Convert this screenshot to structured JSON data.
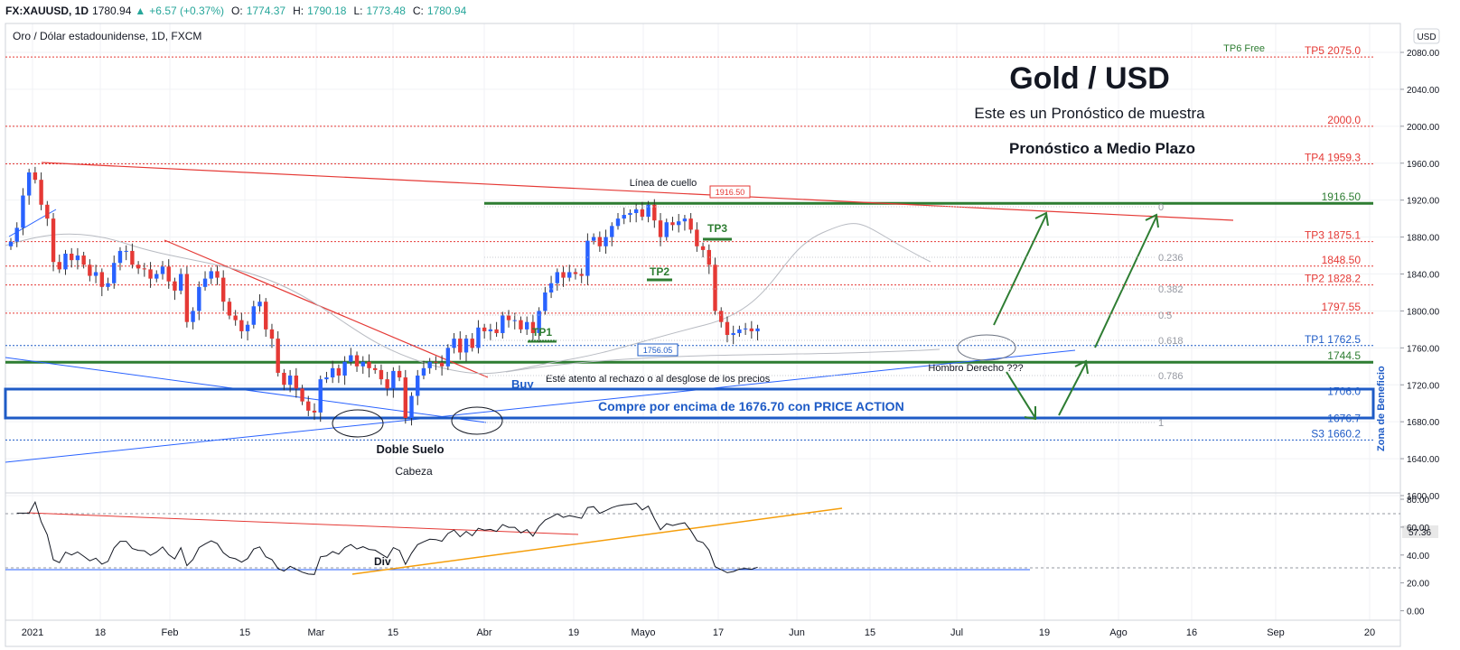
{
  "header": {
    "symbol": "FX:XAUUSD, 1D",
    "last": "1780.94",
    "arrow": "▲",
    "change": "+6.57 (+0.37%)",
    "o_label": "O:",
    "o": "1774.37",
    "h_label": "H:",
    "h": "1790.18",
    "l_label": "L:",
    "l": "1773.48",
    "c_label": "C:",
    "c": "1780.94"
  },
  "chart_title": "Oro / Dólar estadounidense, 1D, FXCM",
  "currency_button": "USD",
  "current_price_label": "57.36",
  "annotations": {
    "big_title": "Gold / USD",
    "subtitle": "Este es un Pronóstico de muestra",
    "horizon": "Pronóstico a Medio Plazo",
    "neckline": "Línea de cuello",
    "neckline_value": "1916.50",
    "tp1": "TP1",
    "tp2": "TP2",
    "tp3": "TP3",
    "price_box": "1756.05",
    "buy": "Buy",
    "watch": "Esté atento al rechazo o al desglose de los precios",
    "buy_above": "Compre por encima de 1676.70 con PRICE ACTION",
    "double_bottom": "Doble Suelo",
    "head": "Cabeza",
    "right_shoulder": "Hombro Derecho ???",
    "div": "Div",
    "profit_zone": "Zona de Beneficio"
  },
  "colors": {
    "up": "#2962ff",
    "down": "#e53935",
    "red": "#f23645",
    "green": "#388e3c",
    "blue": "#1e5bc6",
    "grid": "#eef0f3"
  },
  "chart_data": {
    "type": "candlestick",
    "title": "Oro / Dólar estadounidense, 1D, FXCM",
    "price_axis": {
      "ylim": [
        1600,
        2080
      ],
      "ticks": [
        "2080.00",
        "2040.00",
        "2000.00",
        "1960.00",
        "1920.00",
        "1880.00",
        "1840.00",
        "1800.00",
        "1760.00",
        "1720.00",
        "1680.00",
        "1640.00",
        "1600.00"
      ]
    },
    "time_axis": {
      "ticks": [
        "2021",
        "18",
        "Feb",
        "15",
        "Mar",
        "15",
        "Abr",
        "19",
        "Mayo",
        "17",
        "Jun",
        "15",
        "Jul",
        "19",
        "Ago",
        "16",
        "Sep",
        "20"
      ]
    },
    "levels": [
      {
        "label": "TP6 Free",
        "value": 2085,
        "color": "green"
      },
      {
        "label": "TP5 2075.0",
        "value": 2075.0,
        "color": "red"
      },
      {
        "label": "2000.0",
        "value": 2000.0,
        "color": "red"
      },
      {
        "label": "TP4 1959.3",
        "value": 1959.3,
        "color": "red"
      },
      {
        "label": "1916.50",
        "value": 1916.5,
        "color": "green"
      },
      {
        "label": "TP3 1875.1",
        "value": 1875.1,
        "color": "red"
      },
      {
        "label": "1848.50",
        "value": 1848.5,
        "color": "red"
      },
      {
        "label": "TP2 1828.2",
        "value": 1828.2,
        "color": "red"
      },
      {
        "label": "1797.55",
        "value": 1797.55,
        "color": "red"
      },
      {
        "label": "TP1 1762.5",
        "value": 1762.5,
        "color": "blue"
      },
      {
        "label": "1744.5",
        "value": 1744.5,
        "color": "green"
      },
      {
        "label": "1706.0",
        "value": 1706.0,
        "color": "blue"
      },
      {
        "label": "1676.7",
        "value": 1676.7,
        "color": "blue"
      },
      {
        "label": "S3 1660.2",
        "value": 1660.2,
        "color": "blue"
      }
    ],
    "fib_levels": [
      "0",
      "0.236",
      "0.382",
      "0.5",
      "0.618",
      "0.786",
      "1"
    ],
    "candles_close": [
      1875,
      1890,
      1925,
      1950,
      1942,
      1915,
      1900,
      1853,
      1845,
      1862,
      1855,
      1860,
      1850,
      1838,
      1842,
      1826,
      1830,
      1852,
      1865,
      1865,
      1850,
      1846,
      1845,
      1835,
      1840,
      1848,
      1832,
      1822,
      1840,
      1788,
      1800,
      1826,
      1835,
      1843,
      1836,
      1810,
      1795,
      1790,
      1778,
      1785,
      1805,
      1810,
      1780,
      1770,
      1733,
      1720,
      1730,
      1716,
      1702,
      1692,
      1690,
      1726,
      1728,
      1738,
      1730,
      1745,
      1752,
      1740,
      1745,
      1738,
      1736,
      1726,
      1716,
      1735,
      1728,
      1684,
      1708,
      1730,
      1738,
      1745,
      1744,
      1740,
      1760,
      1770,
      1755,
      1770,
      1760,
      1782,
      1778,
      1780,
      1776,
      1795,
      1790,
      1790,
      1780,
      1788,
      1776,
      1800,
      1820,
      1830,
      1842,
      1836,
      1842,
      1840,
      1838,
      1876,
      1880,
      1870,
      1880,
      1892,
      1900,
      1904,
      1906,
      1910,
      1902,
      1915,
      1898,
      1880,
      1896,
      1893,
      1897,
      1900,
      1888,
      1870,
      1866,
      1850,
      1800,
      1788,
      1774,
      1776,
      1780,
      1781,
      1778,
      1781
    ],
    "rsi": {
      "ylim": [
        -10,
        80
      ],
      "ticks": [
        "80.00",
        "60.00",
        "40.00",
        "20.00",
        "0.00"
      ],
      "current": 57.36
    }
  }
}
